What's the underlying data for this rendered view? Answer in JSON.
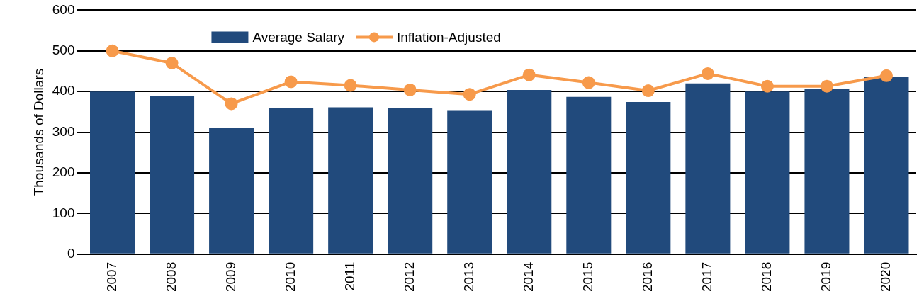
{
  "chart_data": {
    "type": "bar",
    "ylabel": "Thousands of Dollars",
    "categories": [
      "2007",
      "2008",
      "2009",
      "2010",
      "2011",
      "2012",
      "2013",
      "2014",
      "2015",
      "2016",
      "2017",
      "2018",
      "2019",
      "2020"
    ],
    "series": [
      {
        "name": "Average Salary",
        "color": "#214a7c",
        "values": [
          400,
          389,
          311,
          359,
          361,
          359,
          354,
          404,
          387,
          374,
          420,
          400,
          406,
          437
        ]
      },
      {
        "name": "Inflation-Adjusted",
        "type": "line",
        "color": "#f79a4b",
        "values": [
          500,
          470,
          370,
          424,
          415,
          404,
          393,
          441,
          422,
          402,
          444,
          413,
          413,
          439
        ]
      }
    ],
    "ylim": [
      0,
      600
    ],
    "yticks": [
      0,
      100,
      200,
      300,
      400,
      500,
      600
    ],
    "grid": "y",
    "legend": "top",
    "marker": "circle"
  }
}
